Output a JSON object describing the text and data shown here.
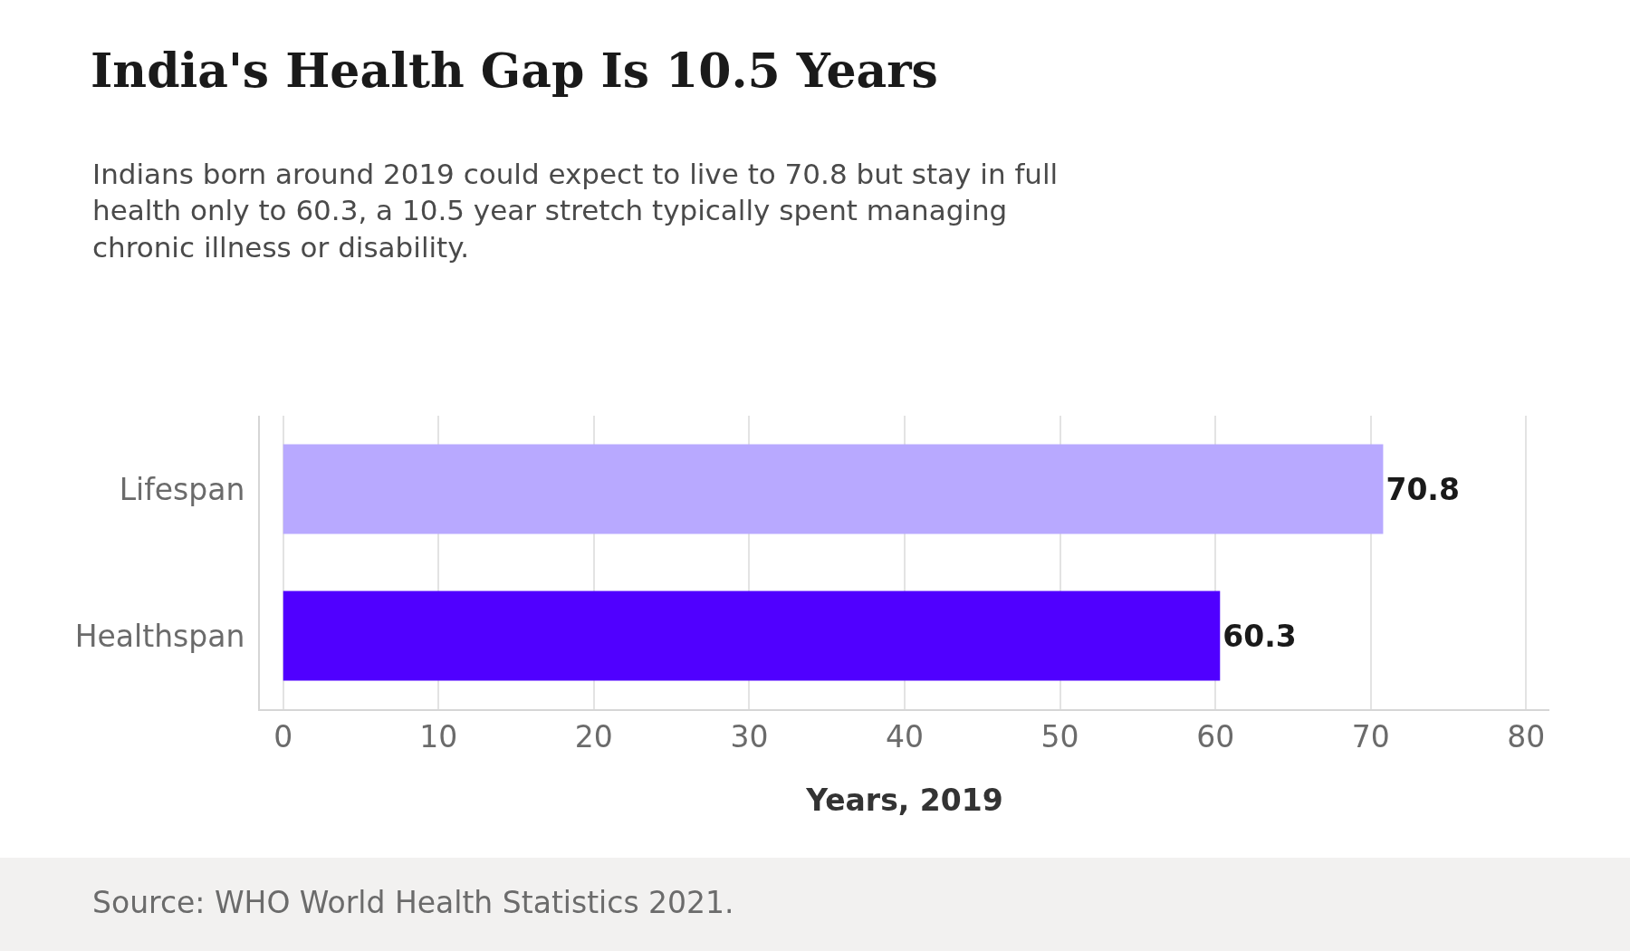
{
  "chart_data": {
    "type": "bar",
    "orientation": "horizontal",
    "title": "India's Health Gap Is 10.5 Years",
    "subtitle": "Indians born around 2019 could expect to live to 70.8 but stay in full\nhealth only to 60.3, a 10.5 year stretch typically spent managing\nchronic illness or disability.",
    "categories": [
      "Lifespan",
      "Healthspan"
    ],
    "values": [
      70.8,
      60.3
    ],
    "colors": [
      "#b8a9ff",
      "#5000ff"
    ],
    "xlabel": "Years, 2019",
    "xlim": [
      -1.5,
      81.5
    ],
    "xticks": [
      0,
      10,
      20,
      30,
      40,
      50,
      60,
      70,
      80
    ],
    "grid": "x",
    "data_labels": true,
    "annotations": [
      "Source: WHO World Health Statistics 2021."
    ]
  }
}
